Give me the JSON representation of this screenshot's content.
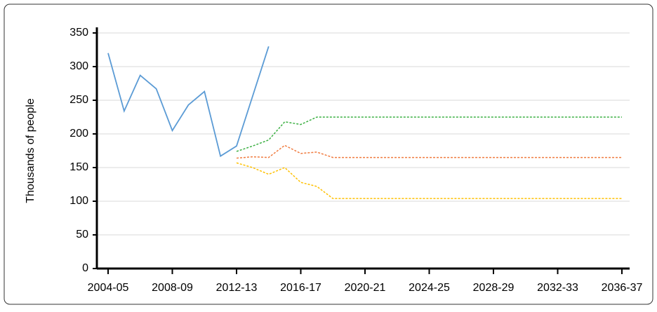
{
  "chart_data": {
    "type": "line",
    "y_label": "Thousands of people",
    "categories": [
      "2004-05",
      null,
      null,
      null,
      "2008-09",
      null,
      null,
      null,
      "2012-13",
      null,
      null,
      null,
      "2016-17",
      null,
      null,
      null,
      "2020-21",
      null,
      null,
      null,
      "2024-25",
      null,
      null,
      null,
      "2028-29",
      null,
      null,
      null,
      "2032-33",
      null,
      null,
      null,
      "2036-37"
    ],
    "series": [
      {
        "color": "#5b9bd5",
        "style": "solid",
        "values": [
          320,
          234,
          287,
          267,
          205,
          243,
          263,
          167,
          182,
          256,
          330,
          null,
          null,
          null,
          null,
          null,
          null,
          null,
          null,
          null,
          null,
          null,
          null,
          null,
          null,
          null,
          null,
          null,
          null,
          null,
          null,
          null,
          null
        ]
      },
      {
        "color": "#3cb043",
        "style": "dashed",
        "values": [
          null,
          null,
          null,
          null,
          null,
          null,
          null,
          null,
          174,
          182,
          191,
          218,
          214,
          225,
          225,
          225,
          225,
          225,
          225,
          225,
          225,
          225,
          225,
          225,
          225,
          225,
          225,
          225,
          225,
          225,
          225,
          225,
          225
        ]
      },
      {
        "color": "#f07b3f",
        "style": "dashed",
        "values": [
          null,
          null,
          null,
          null,
          null,
          null,
          null,
          null,
          164,
          166,
          165,
          183,
          171,
          173,
          165,
          165,
          165,
          165,
          165,
          165,
          165,
          165,
          165,
          165,
          165,
          165,
          165,
          165,
          165,
          165,
          165,
          165,
          165
        ]
      },
      {
        "color": "#ffc000",
        "style": "dashed",
        "values": [
          null,
          null,
          null,
          null,
          null,
          null,
          null,
          null,
          157,
          150,
          140,
          150,
          128,
          122,
          104,
          104,
          104,
          104,
          104,
          104,
          104,
          104,
          104,
          104,
          104,
          104,
          104,
          104,
          104,
          104,
          104,
          104,
          104
        ]
      }
    ],
    "ylim": [
      0,
      350
    ],
    "yticks": [
      0,
      50,
      100,
      150,
      200,
      250,
      300,
      350
    ],
    "grid": true
  }
}
